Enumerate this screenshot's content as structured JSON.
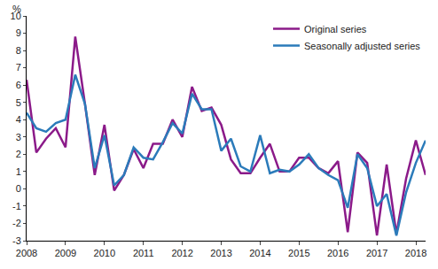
{
  "chart_data": {
    "type": "line",
    "ylabel": "%",
    "categories": [
      "2008",
      null,
      null,
      null,
      "2009",
      null,
      null,
      null,
      "2010",
      null,
      null,
      null,
      "2011",
      null,
      null,
      null,
      "2012",
      null,
      null,
      null,
      "2013",
      null,
      null,
      null,
      "2014",
      null,
      null,
      null,
      "2015",
      null,
      null,
      null,
      "2016",
      null,
      null,
      null,
      "2017",
      null,
      null,
      null,
      "2018",
      null
    ],
    "series": [
      {
        "name": "Original series",
        "color": "#8b1a89",
        "values": [
          6.3,
          2.1,
          2.9,
          3.5,
          2.4,
          8.8,
          4.9,
          0.8,
          3.7,
          -0.1,
          0.8,
          2.3,
          1.2,
          2.6,
          2.6,
          4.0,
          3.0,
          5.9,
          4.5,
          4.7,
          3.7,
          1.7,
          0.9,
          0.9,
          1.8,
          2.6,
          1.0,
          1.0,
          1.8,
          1.8,
          1.2,
          0.9,
          1.6,
          -2.5,
          2.1,
          1.5,
          -2.7,
          1.4,
          -2.6,
          0.6,
          2.8,
          0.8
        ]
      },
      {
        "name": "Seasonally adjusted series",
        "color": "#2b7bba",
        "values": [
          4.4,
          3.5,
          3.3,
          3.8,
          4.0,
          6.6,
          4.9,
          1.2,
          3.1,
          0.2,
          0.8,
          2.4,
          1.8,
          1.7,
          2.7,
          3.8,
          3.2,
          5.5,
          4.6,
          4.6,
          2.2,
          2.9,
          1.3,
          1.0,
          3.1,
          0.9,
          1.1,
          1.0,
          1.4,
          2.0,
          1.2,
          0.8,
          0.5,
          -1.1,
          2.0,
          1.2,
          -1.0,
          -0.3,
          -2.7,
          -0.2,
          1.5,
          2.8
        ]
      }
    ],
    "ylim": [
      -3,
      10
    ],
    "yticks": [
      -3,
      -2,
      -1,
      0,
      1,
      2,
      3,
      4,
      5,
      6,
      7,
      8,
      9,
      10
    ],
    "grid": false,
    "legend": "top right"
  }
}
